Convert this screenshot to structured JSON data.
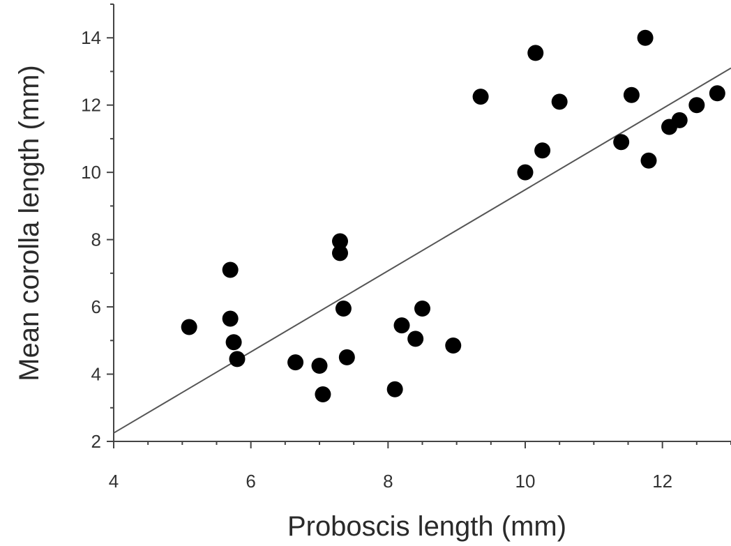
{
  "chart_data": {
    "type": "scatter",
    "title": "",
    "xlabel": "Proboscis length (mm)",
    "ylabel": "Mean corolla length (mm)",
    "xlim": [
      4,
      13
    ],
    "ylim": [
      2,
      15
    ],
    "xticks": [
      4,
      6,
      8,
      10,
      12
    ],
    "yticks": [
      2,
      4,
      6,
      8,
      10,
      12,
      14
    ],
    "grid": false,
    "legend": "none",
    "marker_color": "#000000",
    "line_color": "#555555",
    "trend_line": {
      "x": [
        4,
        13
      ],
      "y": [
        2.25,
        13.1
      ]
    },
    "series": [
      {
        "points": [
          [
            5.1,
            5.4
          ],
          [
            5.7,
            7.1
          ],
          [
            5.7,
            5.65
          ],
          [
            5.75,
            4.95
          ],
          [
            5.8,
            4.45
          ],
          [
            6.65,
            4.35
          ],
          [
            7.0,
            4.25
          ],
          [
            7.05,
            3.4
          ],
          [
            7.3,
            7.95
          ],
          [
            7.3,
            7.6
          ],
          [
            7.35,
            5.95
          ],
          [
            7.4,
            4.5
          ],
          [
            8.1,
            3.55
          ],
          [
            8.2,
            5.45
          ],
          [
            8.4,
            5.05
          ],
          [
            8.5,
            5.95
          ],
          [
            8.95,
            4.85
          ],
          [
            9.35,
            12.25
          ],
          [
            10.0,
            10.0
          ],
          [
            10.15,
            13.55
          ],
          [
            10.25,
            10.65
          ],
          [
            10.5,
            12.1
          ],
          [
            11.4,
            10.9
          ],
          [
            11.55,
            12.3
          ],
          [
            11.75,
            14.0
          ],
          [
            11.8,
            10.35
          ],
          [
            12.1,
            11.35
          ],
          [
            12.25,
            11.55
          ],
          [
            12.5,
            12.0
          ],
          [
            12.8,
            12.35
          ]
        ]
      }
    ]
  }
}
